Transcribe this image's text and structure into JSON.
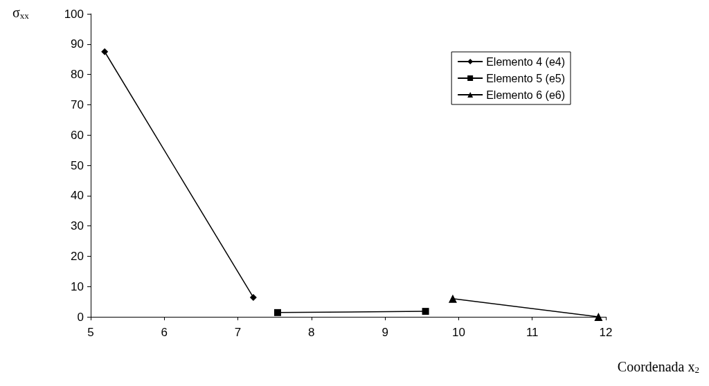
{
  "chart_data": {
    "type": "line",
    "xlabel": "Coordenada x$_{2}$",
    "ylabel": "σ$_{xx}$",
    "xlim": [
      5,
      12
    ],
    "xticks": [
      5,
      6,
      7,
      8,
      9,
      10,
      11,
      12
    ],
    "ylim": [
      0,
      100
    ],
    "yticks": [
      0,
      10,
      20,
      30,
      40,
      50,
      60,
      70,
      80,
      90,
      100
    ],
    "grid": false,
    "legend": "top right",
    "line_style": "solid",
    "series": [
      {
        "name": "Elemento 4 (e4)",
        "color": "#000000",
        "marker": "diamond",
        "x": [
          5.19,
          7.21
        ],
        "values": [
          87.5,
          6.4
        ]
      },
      {
        "name": "Elemento 5 (e5)",
        "color": "#000000",
        "marker": "square",
        "x": [
          7.54,
          9.55
        ],
        "values": [
          1.4,
          1.8
        ]
      },
      {
        "name": "Elemento 6 (e6)",
        "color": "#000000",
        "marker": "triangle",
        "x": [
          9.92,
          11.9
        ],
        "values": [
          6,
          0
        ]
      }
    ]
  }
}
